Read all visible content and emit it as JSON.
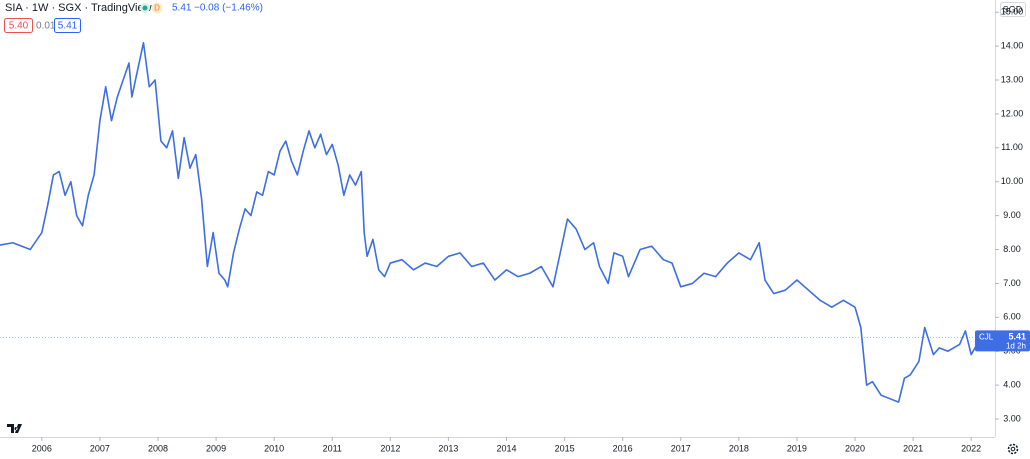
{
  "chart_data": {
    "type": "line",
    "title": "SIA · 1W · SGX · TradingView",
    "quote": {
      "price": "5.41",
      "change": "−0.08 (−1.46%)",
      "bid": "5.40",
      "spread": "0.01",
      "ask": "5.41",
      "badge": "D"
    },
    "currency": "SGD",
    "price_tag": {
      "symbol": "CJL",
      "countdown": "1d 2h"
    },
    "last_price": 5.41,
    "color": "#3d6ee6",
    "x": [
      2005.28,
      2005.5,
      2005.8,
      2006.0,
      2006.1,
      2006.2,
      2006.3,
      2006.4,
      2006.5,
      2006.6,
      2006.7,
      2006.8,
      2006.9,
      2007.0,
      2007.1,
      2007.2,
      2007.3,
      2007.4,
      2007.5,
      2007.55,
      2007.65,
      2007.75,
      2007.85,
      2007.95,
      2008.05,
      2008.15,
      2008.25,
      2008.35,
      2008.45,
      2008.55,
      2008.65,
      2008.75,
      2008.85,
      2008.95,
      2009.05,
      2009.15,
      2009.2,
      2009.3,
      2009.4,
      2009.5,
      2009.6,
      2009.7,
      2009.8,
      2009.9,
      2010.0,
      2010.1,
      2010.2,
      2010.3,
      2010.4,
      2010.5,
      2010.6,
      2010.7,
      2010.8,
      2010.9,
      2011.0,
      2011.1,
      2011.2,
      2011.3,
      2011.4,
      2011.5,
      2011.55,
      2011.6,
      2011.7,
      2011.8,
      2011.9,
      2012.0,
      2012.2,
      2012.4,
      2012.6,
      2012.8,
      2013.0,
      2013.2,
      2013.4,
      2013.6,
      2013.8,
      2014.0,
      2014.2,
      2014.4,
      2014.6,
      2014.8,
      2015.0,
      2015.05,
      2015.2,
      2015.35,
      2015.5,
      2015.6,
      2015.75,
      2015.85,
      2016.0,
      2016.1,
      2016.3,
      2016.5,
      2016.7,
      2016.85,
      2017.0,
      2017.2,
      2017.4,
      2017.6,
      2017.8,
      2018.0,
      2018.2,
      2018.35,
      2018.45,
      2018.6,
      2018.8,
      2019.0,
      2019.2,
      2019.4,
      2019.6,
      2019.8,
      2020.0,
      2020.1,
      2020.2,
      2020.3,
      2020.45,
      2020.6,
      2020.75,
      2020.85,
      2020.95,
      2021.1,
      2021.2,
      2021.35,
      2021.45,
      2021.6,
      2021.8,
      2021.9,
      2022.0,
      2022.1,
      2022.2,
      2022.35
    ],
    "values": [
      8.13,
      8.2,
      8.0,
      8.5,
      9.3,
      10.2,
      10.3,
      9.6,
      10.0,
      9.0,
      8.7,
      9.6,
      10.2,
      11.8,
      12.8,
      11.8,
      12.5,
      13.0,
      13.5,
      12.5,
      13.3,
      14.1,
      12.8,
      13.0,
      11.2,
      11.0,
      11.5,
      10.1,
      11.3,
      10.4,
      10.8,
      9.5,
      7.5,
      8.5,
      7.3,
      7.1,
      6.9,
      7.9,
      8.6,
      9.2,
      9.0,
      9.7,
      9.6,
      10.3,
      10.2,
      10.9,
      11.2,
      10.6,
      10.2,
      10.9,
      11.5,
      11.0,
      11.4,
      10.8,
      11.1,
      10.5,
      9.6,
      10.2,
      9.9,
      10.3,
      8.5,
      7.8,
      8.3,
      7.4,
      7.2,
      7.6,
      7.7,
      7.4,
      7.6,
      7.5,
      7.8,
      7.9,
      7.5,
      7.6,
      7.1,
      7.4,
      7.2,
      7.3,
      7.5,
      6.9,
      8.5,
      8.9,
      8.6,
      8.0,
      8.2,
      7.5,
      7.0,
      7.9,
      7.8,
      7.2,
      8.0,
      8.1,
      7.7,
      7.6,
      6.9,
      7.0,
      7.3,
      7.2,
      7.6,
      7.9,
      7.7,
      8.2,
      7.1,
      6.7,
      6.8,
      7.1,
      6.8,
      6.5,
      6.3,
      6.5,
      6.3,
      5.7,
      4.0,
      4.1,
      3.7,
      3.6,
      3.5,
      4.2,
      4.3,
      4.7,
      5.7,
      4.9,
      5.1,
      5.0,
      5.2,
      5.6,
      4.9,
      5.2,
      5.3,
      5.41
    ],
    "xlim": [
      2005.28,
      2022.41
    ],
    "xticks": [
      2006,
      2007,
      2008,
      2009,
      2010,
      2011,
      2012,
      2013,
      2014,
      2015,
      2016,
      2017,
      2018,
      2019,
      2020,
      2021,
      2022
    ],
    "ylim": [
      2.47,
      15.36
    ],
    "yticks": [
      {
        "value": 3,
        "label": "3.00"
      },
      {
        "value": 4,
        "label": "4.00"
      },
      {
        "value": 5,
        "label": "5.00"
      },
      {
        "value": 6,
        "label": "6.00"
      },
      {
        "value": 7,
        "label": "7.00"
      },
      {
        "value": 8,
        "label": "8.00"
      },
      {
        "value": 9,
        "label": "9.00"
      },
      {
        "value": 10,
        "label": "10.00"
      },
      {
        "value": 11,
        "label": "11.00"
      },
      {
        "value": 12,
        "label": "12.00"
      },
      {
        "value": 13,
        "label": "13.00"
      },
      {
        "value": 14,
        "label": "14.00"
      },
      {
        "value": 15,
        "label": "15.00"
      }
    ],
    "grid": false
  }
}
